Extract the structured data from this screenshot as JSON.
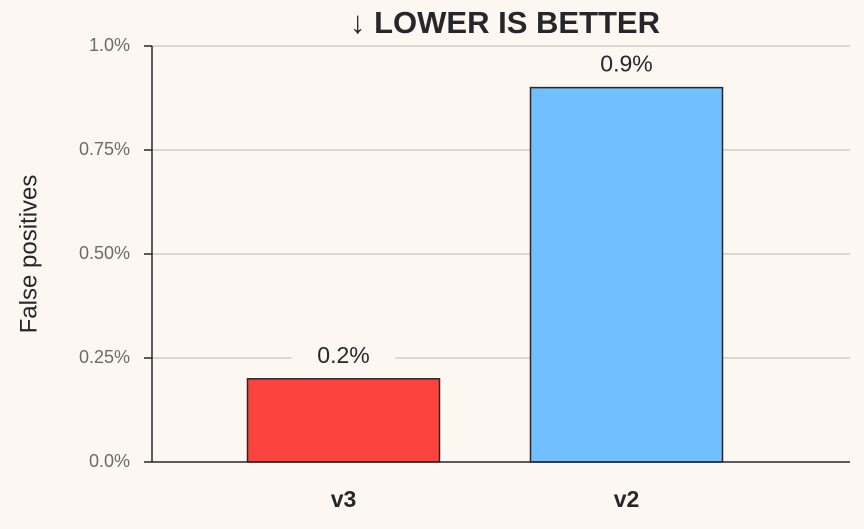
{
  "chart_data": {
    "type": "bar",
    "title": "↓ LOWER IS BETTER",
    "y_label": "False positives",
    "categories": [
      "v3",
      "v2"
    ],
    "values": [
      0.2,
      0.9
    ],
    "value_labels": [
      "0.2%",
      "0.9%"
    ],
    "colors": [
      "#fc443e",
      "#72bfff"
    ],
    "ylim": [
      0,
      1
    ],
    "yticks": [
      {
        "value": 0,
        "label": "0.0%"
      },
      {
        "value": 0.25,
        "label": "0.25%"
      },
      {
        "value": 0.5,
        "label": "0.50%"
      },
      {
        "value": 0.75,
        "label": "0.75%"
      },
      {
        "value": 1,
        "label": "1.0%"
      }
    ],
    "grid": true
  }
}
